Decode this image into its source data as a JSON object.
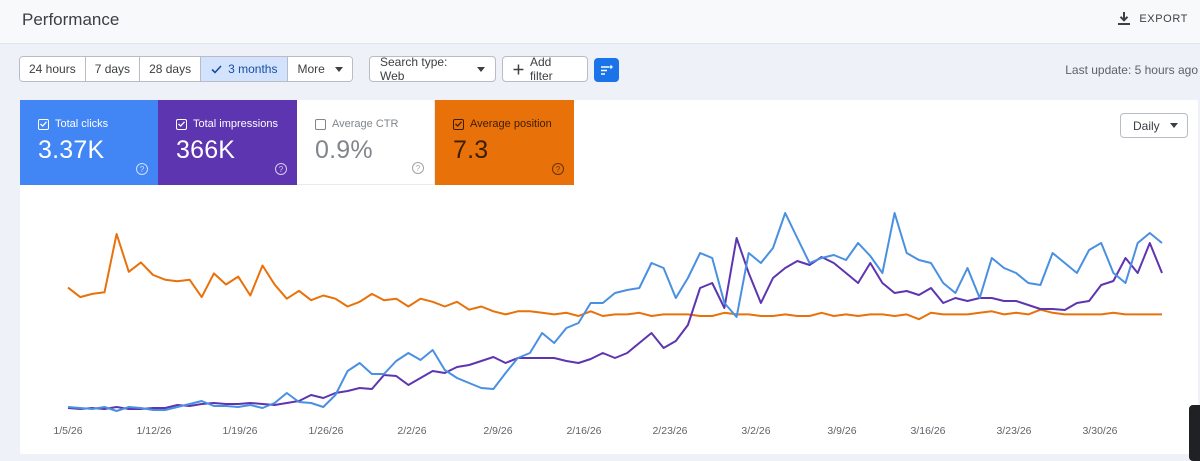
{
  "header": {
    "title": "Performance",
    "export_label": "EXPORT"
  },
  "filters": {
    "ranges": [
      {
        "label": "24 hours",
        "active": false
      },
      {
        "label": "7 days",
        "active": false
      },
      {
        "label": "28 days",
        "active": false
      },
      {
        "label": "3 months",
        "active": true
      },
      {
        "label": "More",
        "active": false
      }
    ],
    "search_type": "Search type: Web",
    "add_filter": "Add filter",
    "last_update": "Last update: 5 hours ago"
  },
  "metrics": [
    {
      "label": "Total clicks",
      "value": "3.37K",
      "checked": true,
      "color": "#4285f4"
    },
    {
      "label": "Total impressions",
      "value": "366K",
      "checked": true,
      "color": "#5e35b1"
    },
    {
      "label": "Average CTR",
      "value": "0.9%",
      "checked": false,
      "color": "#ffffff"
    },
    {
      "label": "Average position",
      "value": "7.3",
      "checked": true,
      "color": "#e8710a"
    }
  ],
  "granularity": "Daily",
  "chart_data": {
    "type": "line",
    "x_tick_labels": [
      "1/5/26",
      "1/12/26",
      "1/19/26",
      "1/26/26",
      "2/2/26",
      "2/9/26",
      "2/16/26",
      "2/23/26",
      "3/2/26",
      "3/9/26",
      "3/16/26",
      "3/23/26",
      "3/30/26"
    ],
    "y_axis_labels_shown": false,
    "grid": false,
    "series": [
      {
        "name": "Total clicks",
        "color": "#4a90e2",
        "values": [
          6,
          5,
          4,
          6,
          2,
          6,
          5,
          3,
          3,
          6,
          9,
          12,
          7,
          7,
          6,
          8,
          5,
          10,
          20,
          11,
          10,
          6,
          18,
          42,
          50,
          39,
          39,
          52,
          60,
          53,
          63,
          43,
          35,
          30,
          25,
          24,
          40,
          55,
          60,
          80,
          70,
          85,
          90,
          110,
          110,
          120,
          123,
          125,
          150,
          145,
          115,
          135,
          160,
          155,
          110,
          96,
          160,
          150,
          165,
          200,
          175,
          150,
          155,
          158,
          153,
          170,
          157,
          140,
          200,
          160,
          153,
          150,
          130,
          120,
          145,
          115,
          155,
          145,
          140,
          130,
          128,
          160,
          150,
          140,
          163,
          170,
          140,
          130,
          170,
          180,
          170
        ]
      },
      {
        "name": "Total impressions",
        "color": "#5e35b1",
        "values": [
          5,
          4,
          5,
          4,
          6,
          4,
          4,
          5,
          5,
          8,
          7,
          9,
          10,
          9,
          9,
          10,
          9,
          8,
          10,
          12,
          18,
          15,
          20,
          22,
          25,
          24,
          38,
          37,
          28,
          35,
          42,
          40,
          46,
          48,
          52,
          56,
          50,
          55,
          55,
          55,
          55,
          52,
          50,
          54,
          60,
          55,
          60,
          70,
          80,
          65,
          72,
          88,
          125,
          130,
          105,
          175,
          140,
          110,
          135,
          145,
          152,
          148,
          156,
          150,
          140,
          130,
          150,
          130,
          120,
          122,
          118,
          125,
          110,
          115,
          112,
          115,
          115,
          112,
          112,
          108,
          104,
          104,
          103,
          110,
          112,
          128,
          132,
          155,
          140,
          170,
          140
        ]
      },
      {
        "name": "Average position",
        "color": "#e8710a",
        "values": [
          8.3,
          8.0,
          8.1,
          8.15,
          10.0,
          8.8,
          9.1,
          8.7,
          8.55,
          8.5,
          8.55,
          8.0,
          8.75,
          8.4,
          8.65,
          8.05,
          9.0,
          8.4,
          7.95,
          8.2,
          7.9,
          8.05,
          7.95,
          7.7,
          7.85,
          8.1,
          7.9,
          7.95,
          7.7,
          7.95,
          7.85,
          7.7,
          7.85,
          7.6,
          7.7,
          7.55,
          7.45,
          7.55,
          7.55,
          7.5,
          7.45,
          7.5,
          7.4,
          7.55,
          7.4,
          7.45,
          7.45,
          7.5,
          7.4,
          7.45,
          7.45,
          7.45,
          7.4,
          7.4,
          7.5,
          7.45,
          7.45,
          7.4,
          7.4,
          7.45,
          7.4,
          7.4,
          7.5,
          7.4,
          7.45,
          7.4,
          7.45,
          7.45,
          7.4,
          7.45,
          7.3,
          7.5,
          7.45,
          7.45,
          7.45,
          7.5,
          7.55,
          7.45,
          7.5,
          7.45,
          7.6,
          7.5,
          7.45,
          7.45,
          7.45,
          7.45,
          7.5,
          7.45,
          7.45,
          7.45,
          7.45
        ]
      }
    ]
  }
}
